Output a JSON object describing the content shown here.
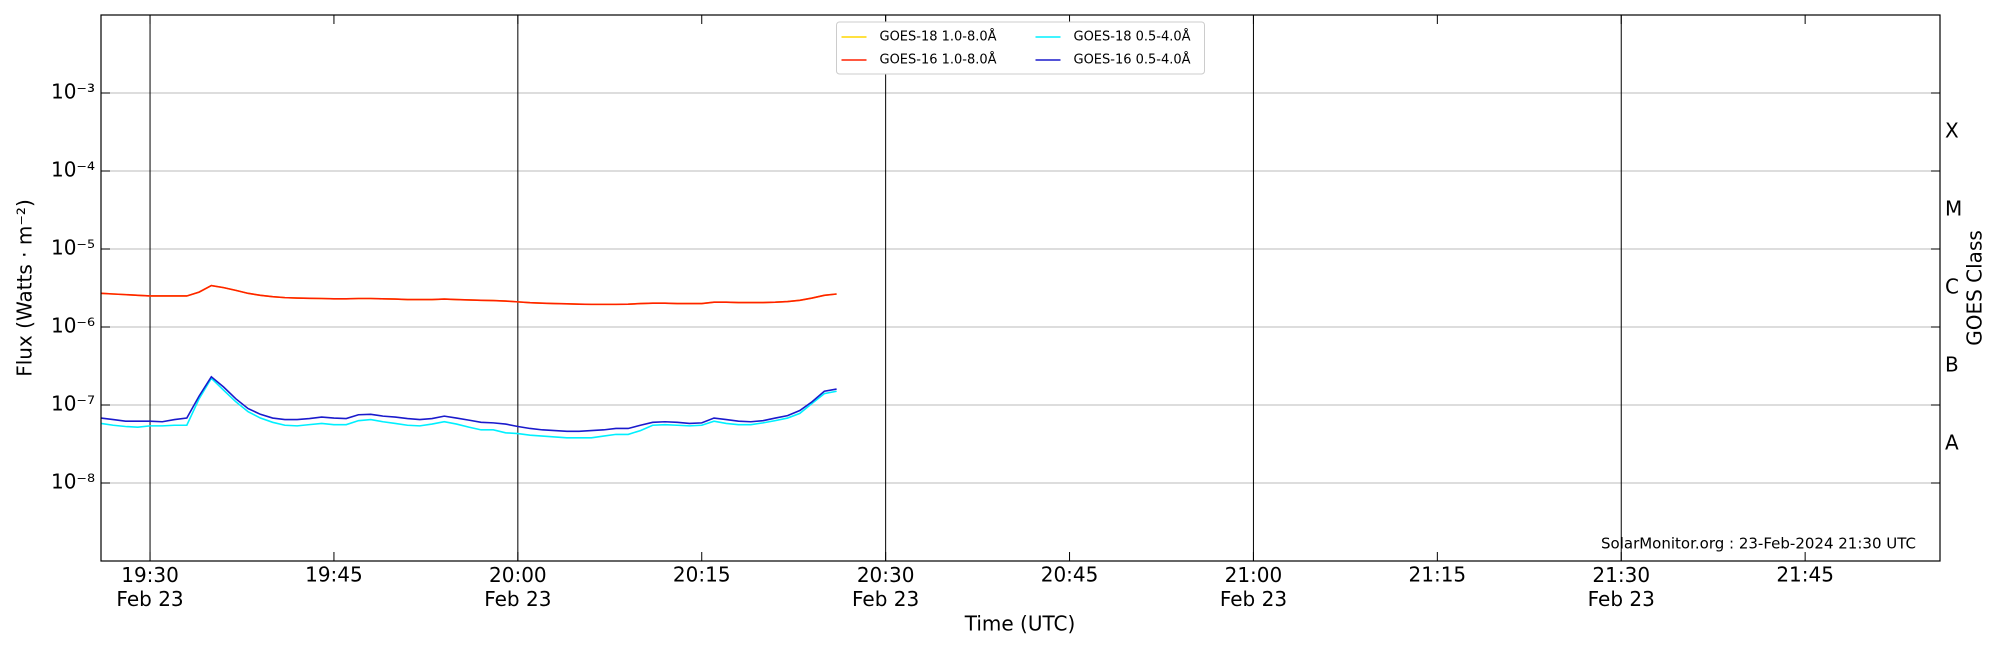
{
  "chart_data": {
    "type": "line",
    "ylabel": "Flux (Watts · m⁻²)",
    "y2label": "GOES Class",
    "xlabel": "Time (UTC)",
    "annotation": "SolarMonitor.org : 23-Feb-2024 21:30 UTC",
    "log_y": true,
    "grid": true,
    "legend_loc": "upper center",
    "xlim": [
      "19:26",
      "21:56"
    ],
    "xticks": [
      {
        "value": "19:30",
        "label": "19:30\nFeb 23"
      },
      "19:45",
      {
        "value": "20:00",
        "label": "20:00\nFeb 23"
      },
      "20:15",
      {
        "value": "20:30",
        "label": "20:30\nFeb 23"
      },
      "20:45",
      {
        "value": "21:00",
        "label": "21:00\nFeb 23"
      },
      "21:15",
      {
        "value": "21:30",
        "label": "21:30\nFeb 23"
      },
      "21:45"
    ],
    "ylim": [
      1e-09,
      0.01
    ],
    "yticks": [
      {
        "value": 1e-08,
        "label": "10⁻⁸"
      },
      {
        "value": 1e-07,
        "label": "10⁻⁷"
      },
      {
        "value": 1e-06,
        "label": "10⁻⁶"
      },
      {
        "value": 1e-05,
        "label": "10⁻⁵"
      },
      {
        "value": 0.0001,
        "label": "10⁻⁴"
      },
      {
        "value": 0.001,
        "label": "10⁻³"
      }
    ],
    "y2lim": [
      1e-09,
      0.01
    ],
    "y2ticks": [
      {
        "value": 3.1623e-08,
        "label": "A"
      },
      {
        "value": 3.1623e-07,
        "label": "B"
      },
      {
        "value": 3.1623e-06,
        "label": "C"
      },
      {
        "value": 3.1623e-05,
        "label": "M"
      },
      {
        "value": 0.00031623,
        "label": "X"
      }
    ],
    "x": [
      "19:26",
      "19:27",
      "19:28",
      "19:29",
      "19:30",
      "19:31",
      "19:32",
      "19:33",
      "19:34",
      "19:35",
      "19:36",
      "19:37",
      "19:38",
      "19:39",
      "19:40",
      "19:41",
      "19:42",
      "19:43",
      "19:44",
      "19:45",
      "19:46",
      "19:47",
      "19:48",
      "19:49",
      "19:50",
      "19:51",
      "19:52",
      "19:53",
      "19:54",
      "19:55",
      "19:56",
      "19:57",
      "19:58",
      "19:59",
      "20:00",
      "20:01",
      "20:02",
      "20:03",
      "20:04",
      "20:05",
      "20:06",
      "20:07",
      "20:08",
      "20:09",
      "20:10",
      "20:11",
      "20:12",
      "20:13",
      "20:14",
      "20:15",
      "20:16",
      "20:17",
      "20:18",
      "20:19",
      "20:20",
      "20:21",
      "20:22",
      "20:23",
      "20:24",
      "20:25",
      "20:26"
    ],
    "series": [
      {
        "name": "GOES-18 1.0-8.0Å",
        "color": "#ffd700",
        "values": [
          2.7e-06,
          2.65e-06,
          2.6e-06,
          2.55e-06,
          2.5e-06,
          2.5e-06,
          2.5e-06,
          2.5e-06,
          2.8e-06,
          3.4e-06,
          3.2e-06,
          2.95e-06,
          2.7e-06,
          2.55e-06,
          2.45e-06,
          2.38e-06,
          2.35e-06,
          2.33e-06,
          2.32e-06,
          2.3e-06,
          2.3e-06,
          2.32e-06,
          2.32e-06,
          2.3e-06,
          2.28e-06,
          2.25e-06,
          2.25e-06,
          2.25e-06,
          2.28e-06,
          2.25e-06,
          2.22e-06,
          2.2e-06,
          2.18e-06,
          2.15e-06,
          2.1e-06,
          2.05e-06,
          2.02e-06,
          2e-06,
          1.98e-06,
          1.96e-06,
          1.95e-06,
          1.95e-06,
          1.95e-06,
          1.96e-06,
          2e-06,
          2.02e-06,
          2.02e-06,
          2e-06,
          2e-06,
          2e-06,
          2.08e-06,
          2.08e-06,
          2.06e-06,
          2.06e-06,
          2.06e-06,
          2.08e-06,
          2.12e-06,
          2.2e-06,
          2.35e-06,
          2.55e-06,
          2.65e-06
        ]
      },
      {
        "name": "GOES-16 1.0-8.0Å",
        "color": "#ff2000",
        "values": [
          2.7e-06,
          2.65e-06,
          2.6e-06,
          2.55e-06,
          2.5e-06,
          2.5e-06,
          2.5e-06,
          2.5e-06,
          2.8e-06,
          3.4e-06,
          3.2e-06,
          2.95e-06,
          2.7e-06,
          2.55e-06,
          2.45e-06,
          2.38e-06,
          2.35e-06,
          2.33e-06,
          2.32e-06,
          2.3e-06,
          2.3e-06,
          2.32e-06,
          2.32e-06,
          2.3e-06,
          2.28e-06,
          2.25e-06,
          2.25e-06,
          2.25e-06,
          2.28e-06,
          2.25e-06,
          2.22e-06,
          2.2e-06,
          2.18e-06,
          2.15e-06,
          2.1e-06,
          2.05e-06,
          2.02e-06,
          2e-06,
          1.98e-06,
          1.96e-06,
          1.95e-06,
          1.95e-06,
          1.95e-06,
          1.96e-06,
          2e-06,
          2.02e-06,
          2.02e-06,
          2e-06,
          2e-06,
          2e-06,
          2.08e-06,
          2.08e-06,
          2.06e-06,
          2.06e-06,
          2.06e-06,
          2.08e-06,
          2.12e-06,
          2.2e-06,
          2.35e-06,
          2.55e-06,
          2.65e-06
        ]
      },
      {
        "name": "GOES-18 0.5-4.0Å",
        "color": "#00f0ff",
        "values": [
          5.8e-08,
          5.5e-08,
          5.3e-08,
          5.2e-08,
          5.4e-08,
          5.4e-08,
          5.5e-08,
          5.5e-08,
          1.2e-07,
          2.2e-07,
          1.55e-07,
          1.1e-07,
          8.2e-08,
          6.8e-08,
          6e-08,
          5.5e-08,
          5.4e-08,
          5.6e-08,
          5.8e-08,
          5.6e-08,
          5.6e-08,
          6.3e-08,
          6.5e-08,
          6.1e-08,
          5.8e-08,
          5.5e-08,
          5.4e-08,
          5.7e-08,
          6.1e-08,
          5.7e-08,
          5.2e-08,
          4.8e-08,
          4.8e-08,
          4.4e-08,
          4.3e-08,
          4.1e-08,
          4e-08,
          3.9e-08,
          3.8e-08,
          3.8e-08,
          3.8e-08,
          4e-08,
          4.2e-08,
          4.2e-08,
          4.7e-08,
          5.5e-08,
          5.6e-08,
          5.5e-08,
          5.4e-08,
          5.5e-08,
          6.2e-08,
          5.8e-08,
          5.6e-08,
          5.6e-08,
          5.9e-08,
          6.3e-08,
          6.8e-08,
          7.8e-08,
          1.05e-07,
          1.4e-07,
          1.5e-07
        ]
      },
      {
        "name": "GOES-16 0.5-4.0Å",
        "color": "#1a1acc",
        "values": [
          6.8e-08,
          6.5e-08,
          6.2e-08,
          6.2e-08,
          6.2e-08,
          6.1e-08,
          6.5e-08,
          6.8e-08,
          1.3e-07,
          2.3e-07,
          1.7e-07,
          1.2e-07,
          9e-08,
          7.6e-08,
          6.8e-08,
          6.5e-08,
          6.5e-08,
          6.7e-08,
          7e-08,
          6.8e-08,
          6.7e-08,
          7.5e-08,
          7.6e-08,
          7.2e-08,
          7e-08,
          6.7e-08,
          6.5e-08,
          6.7e-08,
          7.2e-08,
          6.8e-08,
          6.4e-08,
          6e-08,
          5.9e-08,
          5.7e-08,
          5.3e-08,
          5e-08,
          4.8e-08,
          4.7e-08,
          4.6e-08,
          4.6e-08,
          4.7e-08,
          4.8e-08,
          5e-08,
          5e-08,
          5.5e-08,
          6e-08,
          6.1e-08,
          6e-08,
          5.8e-08,
          5.9e-08,
          6.8e-08,
          6.5e-08,
          6.2e-08,
          6.1e-08,
          6.3e-08,
          6.8e-08,
          7.3e-08,
          8.5e-08,
          1.1e-07,
          1.5e-07,
          1.6e-07
        ]
      }
    ]
  }
}
